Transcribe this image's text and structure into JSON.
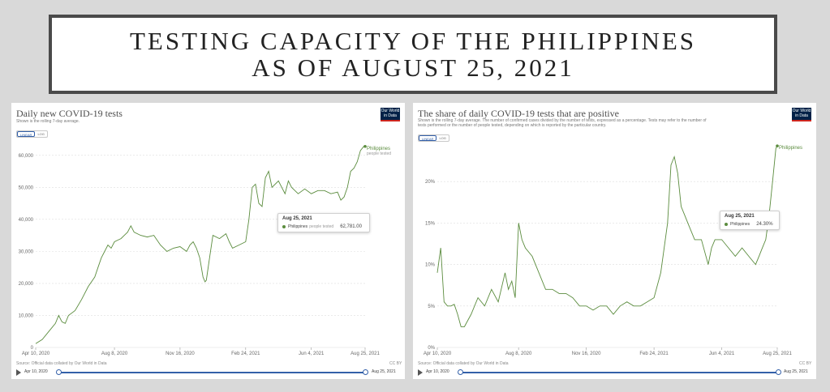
{
  "banner": {
    "line1": "TESTING CAPACITY OF THE PHILIPPINES",
    "line2": "AS OF AUGUST 25, 2021"
  },
  "colors": {
    "series": "#5b8c3e",
    "accent": "#3360a9",
    "logo_bg": "#002147",
    "logo_stripe": "#ce261e"
  },
  "logo": {
    "line1": "Our World",
    "line2": "in Data"
  },
  "chart_data": [
    {
      "type": "line",
      "title": "Daily new COVID-19 tests",
      "subtitle": "Shown is the rolling 7-day average.",
      "scale_options": [
        "LINEAR",
        "LOG"
      ],
      "active_scale": "LINEAR",
      "ylim": [
        0,
        65000
      ],
      "y_ticks": [
        0,
        10000,
        20000,
        30000,
        40000,
        50000,
        60000
      ],
      "y_tick_labels": [
        "0",
        "10,000",
        "20,000",
        "30,000",
        "40,000",
        "50,000",
        "60,000"
      ],
      "x_range_days": [
        0,
        502
      ],
      "x_ticks": [
        0,
        120,
        220,
        320,
        420,
        502
      ],
      "x_tick_labels": [
        "Apr 10, 2020",
        "Aug 8, 2020",
        "Nov 16, 2020",
        "Feb 24, 2021",
        "Jun 4, 2021",
        "Aug 25, 2021"
      ],
      "series": [
        {
          "name": "Philippines",
          "note": "people tested",
          "x": [
            0,
            10,
            20,
            30,
            35,
            40,
            45,
            50,
            60,
            70,
            80,
            90,
            95,
            100,
            110,
            115,
            120,
            125,
            130,
            135,
            140,
            145,
            150,
            160,
            170,
            180,
            190,
            200,
            210,
            220,
            230,
            235,
            240,
            245,
            250,
            255,
            258,
            260,
            265,
            270,
            280,
            290,
            295,
            300,
            310,
            320,
            325,
            330,
            335,
            340,
            345,
            350,
            355,
            360,
            370,
            380,
            385,
            390,
            400,
            410,
            420,
            430,
            440,
            450,
            460,
            465,
            470,
            475,
            480,
            485,
            490,
            495,
            500,
            502
          ],
          "values": [
            1200,
            2500,
            5000,
            7500,
            10000,
            8000,
            7500,
            10000,
            11500,
            15000,
            19000,
            22000,
            25000,
            28000,
            32000,
            31000,
            33000,
            33500,
            34000,
            35000,
            36000,
            38000,
            36000,
            35000,
            34500,
            35000,
            32000,
            30000,
            31000,
            31500,
            30000,
            32000,
            33000,
            31000,
            28000,
            22000,
            20500,
            21000,
            28000,
            35000,
            34000,
            35500,
            33000,
            31000,
            32000,
            33000,
            40000,
            50000,
            51000,
            45000,
            44000,
            53000,
            55000,
            50000,
            52000,
            48000,
            52000,
            50000,
            48000,
            49500,
            48000,
            49000,
            49000,
            48000,
            48500,
            46000,
            47000,
            50000,
            55000,
            56000,
            58000,
            61500,
            62800,
            62781
          ]
        }
      ],
      "annotation": {
        "label": "Philippines",
        "sublabel": "people tested"
      },
      "tooltip": {
        "date": "Aug 25, 2021",
        "series": "Philippines",
        "note": "people tested",
        "value": "62,781.00"
      },
      "source": "Source: Official data collated by Our World in Data",
      "license": "CC BY",
      "timeline": {
        "start": "Apr 10, 2020",
        "end": "Aug 25, 2021"
      }
    },
    {
      "type": "line",
      "title": "The share of daily COVID-19 tests that are positive",
      "subtitle_lines": [
        "Shown is the rolling 7-day average. The number of confirmed cases divided by the number of tests, expressed as a percentage. Tests may refer to the number of",
        "tests performed or the number of people tested, depending on which is reported by the particular country."
      ],
      "scale_options": [
        "LINEAR",
        "LOG"
      ],
      "active_scale": "LINEAR",
      "ylim": [
        0,
        25
      ],
      "y_ticks": [
        0,
        5,
        10,
        15,
        20
      ],
      "y_tick_labels": [
        "0%",
        "5%",
        "10%",
        "15%",
        "20%"
      ],
      "x_range_days": [
        0,
        502
      ],
      "x_ticks": [
        0,
        120,
        220,
        320,
        420,
        502
      ],
      "x_tick_labels": [
        "Apr 10, 2020",
        "Aug 8, 2020",
        "Nov 16, 2020",
        "Feb 24, 2021",
        "Jun 4, 2021",
        "Aug 25, 2021"
      ],
      "series": [
        {
          "name": "Philippines",
          "x": [
            0,
            5,
            10,
            15,
            20,
            25,
            30,
            35,
            40,
            50,
            60,
            70,
            80,
            90,
            100,
            105,
            110,
            115,
            120,
            125,
            130,
            140,
            150,
            160,
            170,
            180,
            190,
            200,
            210,
            220,
            230,
            240,
            250,
            260,
            270,
            280,
            290,
            300,
            310,
            320,
            330,
            340,
            345,
            350,
            355,
            360,
            365,
            370,
            380,
            390,
            400,
            405,
            410,
            420,
            430,
            440,
            450,
            460,
            470,
            475,
            480,
            485,
            490,
            495,
            500,
            502
          ],
          "values": [
            9,
            12,
            5.5,
            5,
            5,
            5.2,
            4,
            2.5,
            2.5,
            4,
            6,
            5,
            7,
            5.5,
            9,
            7,
            8,
            6,
            15,
            13,
            12,
            11,
            9,
            7,
            7,
            6.5,
            6.5,
            6,
            5,
            5,
            4.5,
            5,
            5,
            4,
            5,
            5.5,
            5,
            5,
            5.5,
            6,
            9,
            15,
            22,
            23,
            21,
            17,
            16,
            15,
            13,
            13,
            10,
            12,
            13,
            13,
            12,
            11,
            12,
            11,
            10,
            11,
            12,
            13,
            16,
            20,
            24,
            24.3
          ]
        }
      ],
      "annotation": {
        "label": "Philippines"
      },
      "tooltip": {
        "date": "Aug 25, 2021",
        "series": "Philippines",
        "value": "24.30%"
      },
      "source": "Source: Official data collated by Our World in Data",
      "license": "CC BY",
      "timeline": {
        "start": "Apr 10, 2020",
        "end": "Aug 25, 2021"
      }
    }
  ]
}
